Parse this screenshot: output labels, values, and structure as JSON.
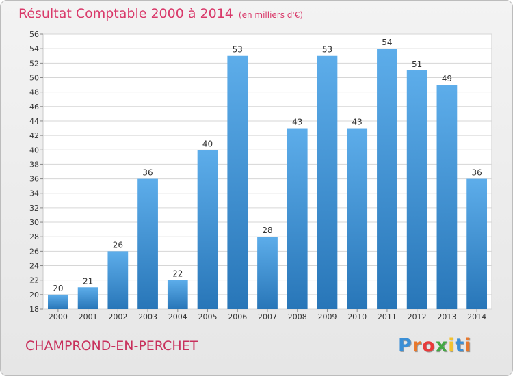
{
  "header": {
    "title": "Résultat Comptable 2000 à 2014",
    "subtitle": "(en milliers d'€)"
  },
  "footer": {
    "commune": "CHAMPROND-EN-PERCHET",
    "logo_text": "Proxiti"
  },
  "colors": {
    "title": "#d9396a",
    "bar_top": "#5dadea",
    "bar_bottom": "#2876b8",
    "grid": "#d6d6d6",
    "logo": [
      "#3b8fd6",
      "#e8782d",
      "#e83a3a",
      "#44a844",
      "#f2c230",
      "#3b8fd6",
      "#e8782d"
    ]
  },
  "chart_data": {
    "type": "bar",
    "title": "Résultat Comptable 2000 à 2014",
    "subtitle": "(en milliers d'€)",
    "xlabel": "",
    "ylabel": "",
    "categories": [
      "2000",
      "2001",
      "2002",
      "2003",
      "2004",
      "2005",
      "2006",
      "2007",
      "2008",
      "2009",
      "2010",
      "2011",
      "2012",
      "2013",
      "2014"
    ],
    "values": [
      20,
      21,
      26,
      36,
      22,
      40,
      53,
      28,
      43,
      53,
      43,
      54,
      51,
      49,
      36
    ],
    "ylim": [
      18,
      56
    ],
    "yticks": [
      "18",
      "20",
      "22",
      "24",
      "26",
      "28",
      "30",
      "32",
      "34",
      "36",
      "38",
      "40",
      "42",
      "44",
      "46",
      "48",
      "50",
      "52",
      "54",
      "56"
    ],
    "grid": true,
    "legend": "none"
  }
}
